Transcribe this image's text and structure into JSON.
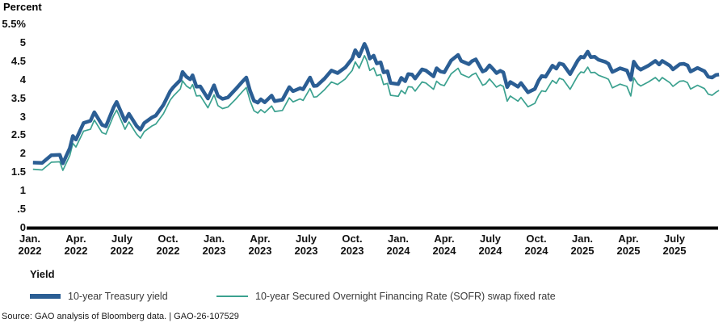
{
  "y_axis_title": "Percent",
  "legend": {
    "title": "Yield",
    "items": [
      {
        "label": "10-year Treasury yield"
      },
      {
        "label": "10-year Secured Overnight Financing Rate (SOFR) swap fixed rate"
      }
    ]
  },
  "footer": {
    "source": "Source: GAO analysis of Bloomberg data.  |  GAO-26-107529"
  },
  "colors": {
    "treasury_blue": "#2b5e94",
    "sofr_teal": "#3ba18f",
    "axis_black": "#000000",
    "tick_text": "#111111"
  },
  "chart_data": {
    "type": "line",
    "title": "",
    "xlabel": "",
    "ylabel": "Percent",
    "ylim": [
      0,
      5.5
    ],
    "grid": false,
    "legend_position": "bottom",
    "y_axis": {
      "ticks": [
        {
          "label": "5.5%",
          "value": 5.5
        },
        {
          "label": "5",
          "value": 5.0
        },
        {
          "label": "4.5",
          "value": 4.5
        },
        {
          "label": "4",
          "value": 4.0
        },
        {
          "label": "3.5",
          "value": 3.5
        },
        {
          "label": "3",
          "value": 3.0
        },
        {
          "label": "2.5",
          "value": 2.5
        },
        {
          "label": "2",
          "value": 2.0
        },
        {
          "label": "1.5",
          "value": 1.5
        },
        {
          "label": "1",
          "value": 1.0
        },
        {
          "label": ".5",
          "value": 0.5
        },
        {
          "label": "0",
          "value": 0.0
        }
      ]
    },
    "x_axis": {
      "ticks": [
        {
          "month_index": 0,
          "line1": "Jan.",
          "line2": "2022"
        },
        {
          "month_index": 3,
          "line1": "Apr.",
          "line2": "2022"
        },
        {
          "month_index": 6,
          "line1": "July",
          "line2": "2022"
        },
        {
          "month_index": 9,
          "line1": "Oct.",
          "line2": "2022"
        },
        {
          "month_index": 12,
          "line1": "Jan.",
          "line2": "2023"
        },
        {
          "month_index": 15,
          "line1": "Apr.",
          "line2": "2023"
        },
        {
          "month_index": 18,
          "line1": "July",
          "line2": "2023"
        },
        {
          "month_index": 21,
          "line1": "Oct.",
          "line2": "2023"
        },
        {
          "month_index": 24,
          "line1": "Jan.",
          "line2": "2024"
        },
        {
          "month_index": 27,
          "line1": "Apr.",
          "line2": "2024"
        },
        {
          "month_index": 30,
          "line1": "July",
          "line2": "2024"
        },
        {
          "month_index": 33,
          "line1": "Oct.",
          "line2": "2024"
        },
        {
          "month_index": 36,
          "line1": "Jan.",
          "line2": "2025"
        },
        {
          "month_index": 39,
          "line1": "Apr.",
          "line2": "2025"
        },
        {
          "month_index": 42,
          "line1": "July",
          "line2": "2025"
        }
      ]
    },
    "x_months_since_jan_2022": [
      0.2,
      0.8,
      1.4,
      1.95,
      2.15,
      2.6,
      2.8,
      3.0,
      3.5,
      3.95,
      4.2,
      4.7,
      4.95,
      5.45,
      5.65,
      6.2,
      6.45,
      6.95,
      7.2,
      7.45,
      7.95,
      8.2,
      8.7,
      9.15,
      9.35,
      9.8,
      9.95,
      10.2,
      10.45,
      10.6,
      10.85,
      11.1,
      11.6,
      12.0,
      12.25,
      12.55,
      12.9,
      13.4,
      13.85,
      14.1,
      14.35,
      14.6,
      14.85,
      15.05,
      15.3,
      15.75,
      15.95,
      16.45,
      16.9,
      17.15,
      17.6,
      17.8,
      18.25,
      18.5,
      18.7,
      19.2,
      19.65,
      20.05,
      20.55,
      20.75,
      21.0,
      21.2,
      21.45,
      21.8,
      21.95,
      22.15,
      22.4,
      22.6,
      22.85,
      23.05,
      23.3,
      23.5,
      24.0,
      24.2,
      24.45,
      24.65,
      24.9,
      25.1,
      25.55,
      25.8,
      26.3,
      26.5,
      26.75,
      27.0,
      27.45,
      27.9,
      28.1,
      28.6,
      28.8,
      29.05,
      29.5,
      29.7,
      29.95,
      30.2,
      30.4,
      30.65,
      30.85,
      31.1,
      31.3,
      31.8,
      32.0,
      32.45,
      32.9,
      33.15,
      33.35,
      33.6,
      34.05,
      34.3,
      34.5,
      34.75,
      35.2,
      35.7,
      35.9,
      36.1,
      36.35,
      36.55,
      36.8,
      37.05,
      37.5,
      37.7,
      37.95,
      38.45,
      38.9,
      39.15,
      39.35,
      39.6,
      39.8,
      40.3,
      40.75,
      41.0,
      41.2,
      41.7,
      41.9,
      42.35,
      42.6,
      42.85,
      43.05,
      43.5,
      43.95,
      44.2,
      44.45,
      44.7,
      44.9
    ],
    "series": [
      {
        "name": "10-year Treasury yield",
        "data_name": "treasury-yield-line",
        "color": "#2b5e94",
        "stroke_width": 4.5,
        "values": [
          1.76,
          1.75,
          1.96,
          1.97,
          1.74,
          2.15,
          2.48,
          2.38,
          2.83,
          2.89,
          3.12,
          2.78,
          2.74,
          3.25,
          3.4,
          2.88,
          3.08,
          2.75,
          2.65,
          2.83,
          2.98,
          3.03,
          3.32,
          3.69,
          3.8,
          3.99,
          4.21,
          4.08,
          4.01,
          4.12,
          3.81,
          3.82,
          3.49,
          3.85,
          3.56,
          3.48,
          3.52,
          3.74,
          3.95,
          4.06,
          3.7,
          3.43,
          3.38,
          3.47,
          3.39,
          3.57,
          3.42,
          3.46,
          3.8,
          3.69,
          3.77,
          3.74,
          4.06,
          3.83,
          3.84,
          4.03,
          4.25,
          4.18,
          4.33,
          4.44,
          4.57,
          4.8,
          4.63,
          4.97,
          4.84,
          4.57,
          4.65,
          4.44,
          4.47,
          4.2,
          4.23,
          3.91,
          3.88,
          4.05,
          3.96,
          4.15,
          4.14,
          4.03,
          4.28,
          4.25,
          4.09,
          4.31,
          4.22,
          4.2,
          4.52,
          4.67,
          4.51,
          4.42,
          4.5,
          4.55,
          4.22,
          4.26,
          4.39,
          4.28,
          4.18,
          4.24,
          4.2,
          3.8,
          3.94,
          3.81,
          3.91,
          3.66,
          3.75,
          3.98,
          4.1,
          4.08,
          4.38,
          4.3,
          4.44,
          4.41,
          4.15,
          4.52,
          4.62,
          4.6,
          4.76,
          4.61,
          4.62,
          4.54,
          4.48,
          4.43,
          4.21,
          4.31,
          4.25,
          4.0,
          4.49,
          4.33,
          4.27,
          4.38,
          4.51,
          4.41,
          4.51,
          4.38,
          4.28,
          4.42,
          4.43,
          4.39,
          4.22,
          4.32,
          4.23,
          4.08,
          4.06,
          4.13,
          4.14
        ]
      },
      {
        "name": "10-year Secured Overnight Financing Rate (SOFR) swap fixed rate",
        "data_name": "sofr-swap-line",
        "color": "#3ba18f",
        "stroke_width": 1.7,
        "values": [
          1.58,
          1.56,
          1.77,
          1.78,
          1.55,
          1.95,
          2.28,
          2.18,
          2.61,
          2.66,
          2.91,
          2.57,
          2.53,
          3.03,
          3.18,
          2.66,
          2.86,
          2.53,
          2.42,
          2.6,
          2.75,
          2.8,
          3.08,
          3.45,
          3.56,
          3.75,
          3.97,
          3.83,
          3.76,
          3.87,
          3.56,
          3.57,
          3.24,
          3.59,
          3.3,
          3.22,
          3.26,
          3.47,
          3.68,
          3.79,
          3.43,
          3.16,
          3.1,
          3.19,
          3.11,
          3.29,
          3.14,
          3.17,
          3.51,
          3.4,
          3.48,
          3.44,
          3.76,
          3.53,
          3.54,
          3.73,
          3.94,
          3.87,
          4.02,
          4.13,
          4.25,
          4.48,
          4.31,
          4.65,
          4.52,
          4.25,
          4.32,
          4.11,
          4.14,
          3.87,
          3.9,
          3.58,
          3.55,
          3.71,
          3.62,
          3.81,
          3.8,
          3.69,
          3.94,
          3.91,
          3.74,
          3.96,
          3.87,
          3.84,
          4.16,
          4.31,
          4.15,
          4.06,
          4.13,
          4.18,
          3.85,
          3.89,
          4.02,
          3.9,
          3.8,
          3.86,
          3.82,
          3.42,
          3.56,
          3.42,
          3.52,
          3.27,
          3.36,
          3.58,
          3.7,
          3.68,
          3.98,
          3.9,
          4.04,
          4.0,
          3.74,
          4.11,
          4.21,
          4.19,
          4.34,
          4.19,
          4.2,
          4.12,
          4.05,
          4.01,
          3.78,
          3.88,
          3.82,
          3.56,
          4.05,
          3.89,
          3.83,
          3.94,
          4.06,
          3.96,
          4.06,
          3.92,
          3.82,
          3.96,
          3.97,
          3.92,
          3.75,
          3.85,
          3.76,
          3.61,
          3.58,
          3.66,
          3.71
        ]
      }
    ]
  }
}
